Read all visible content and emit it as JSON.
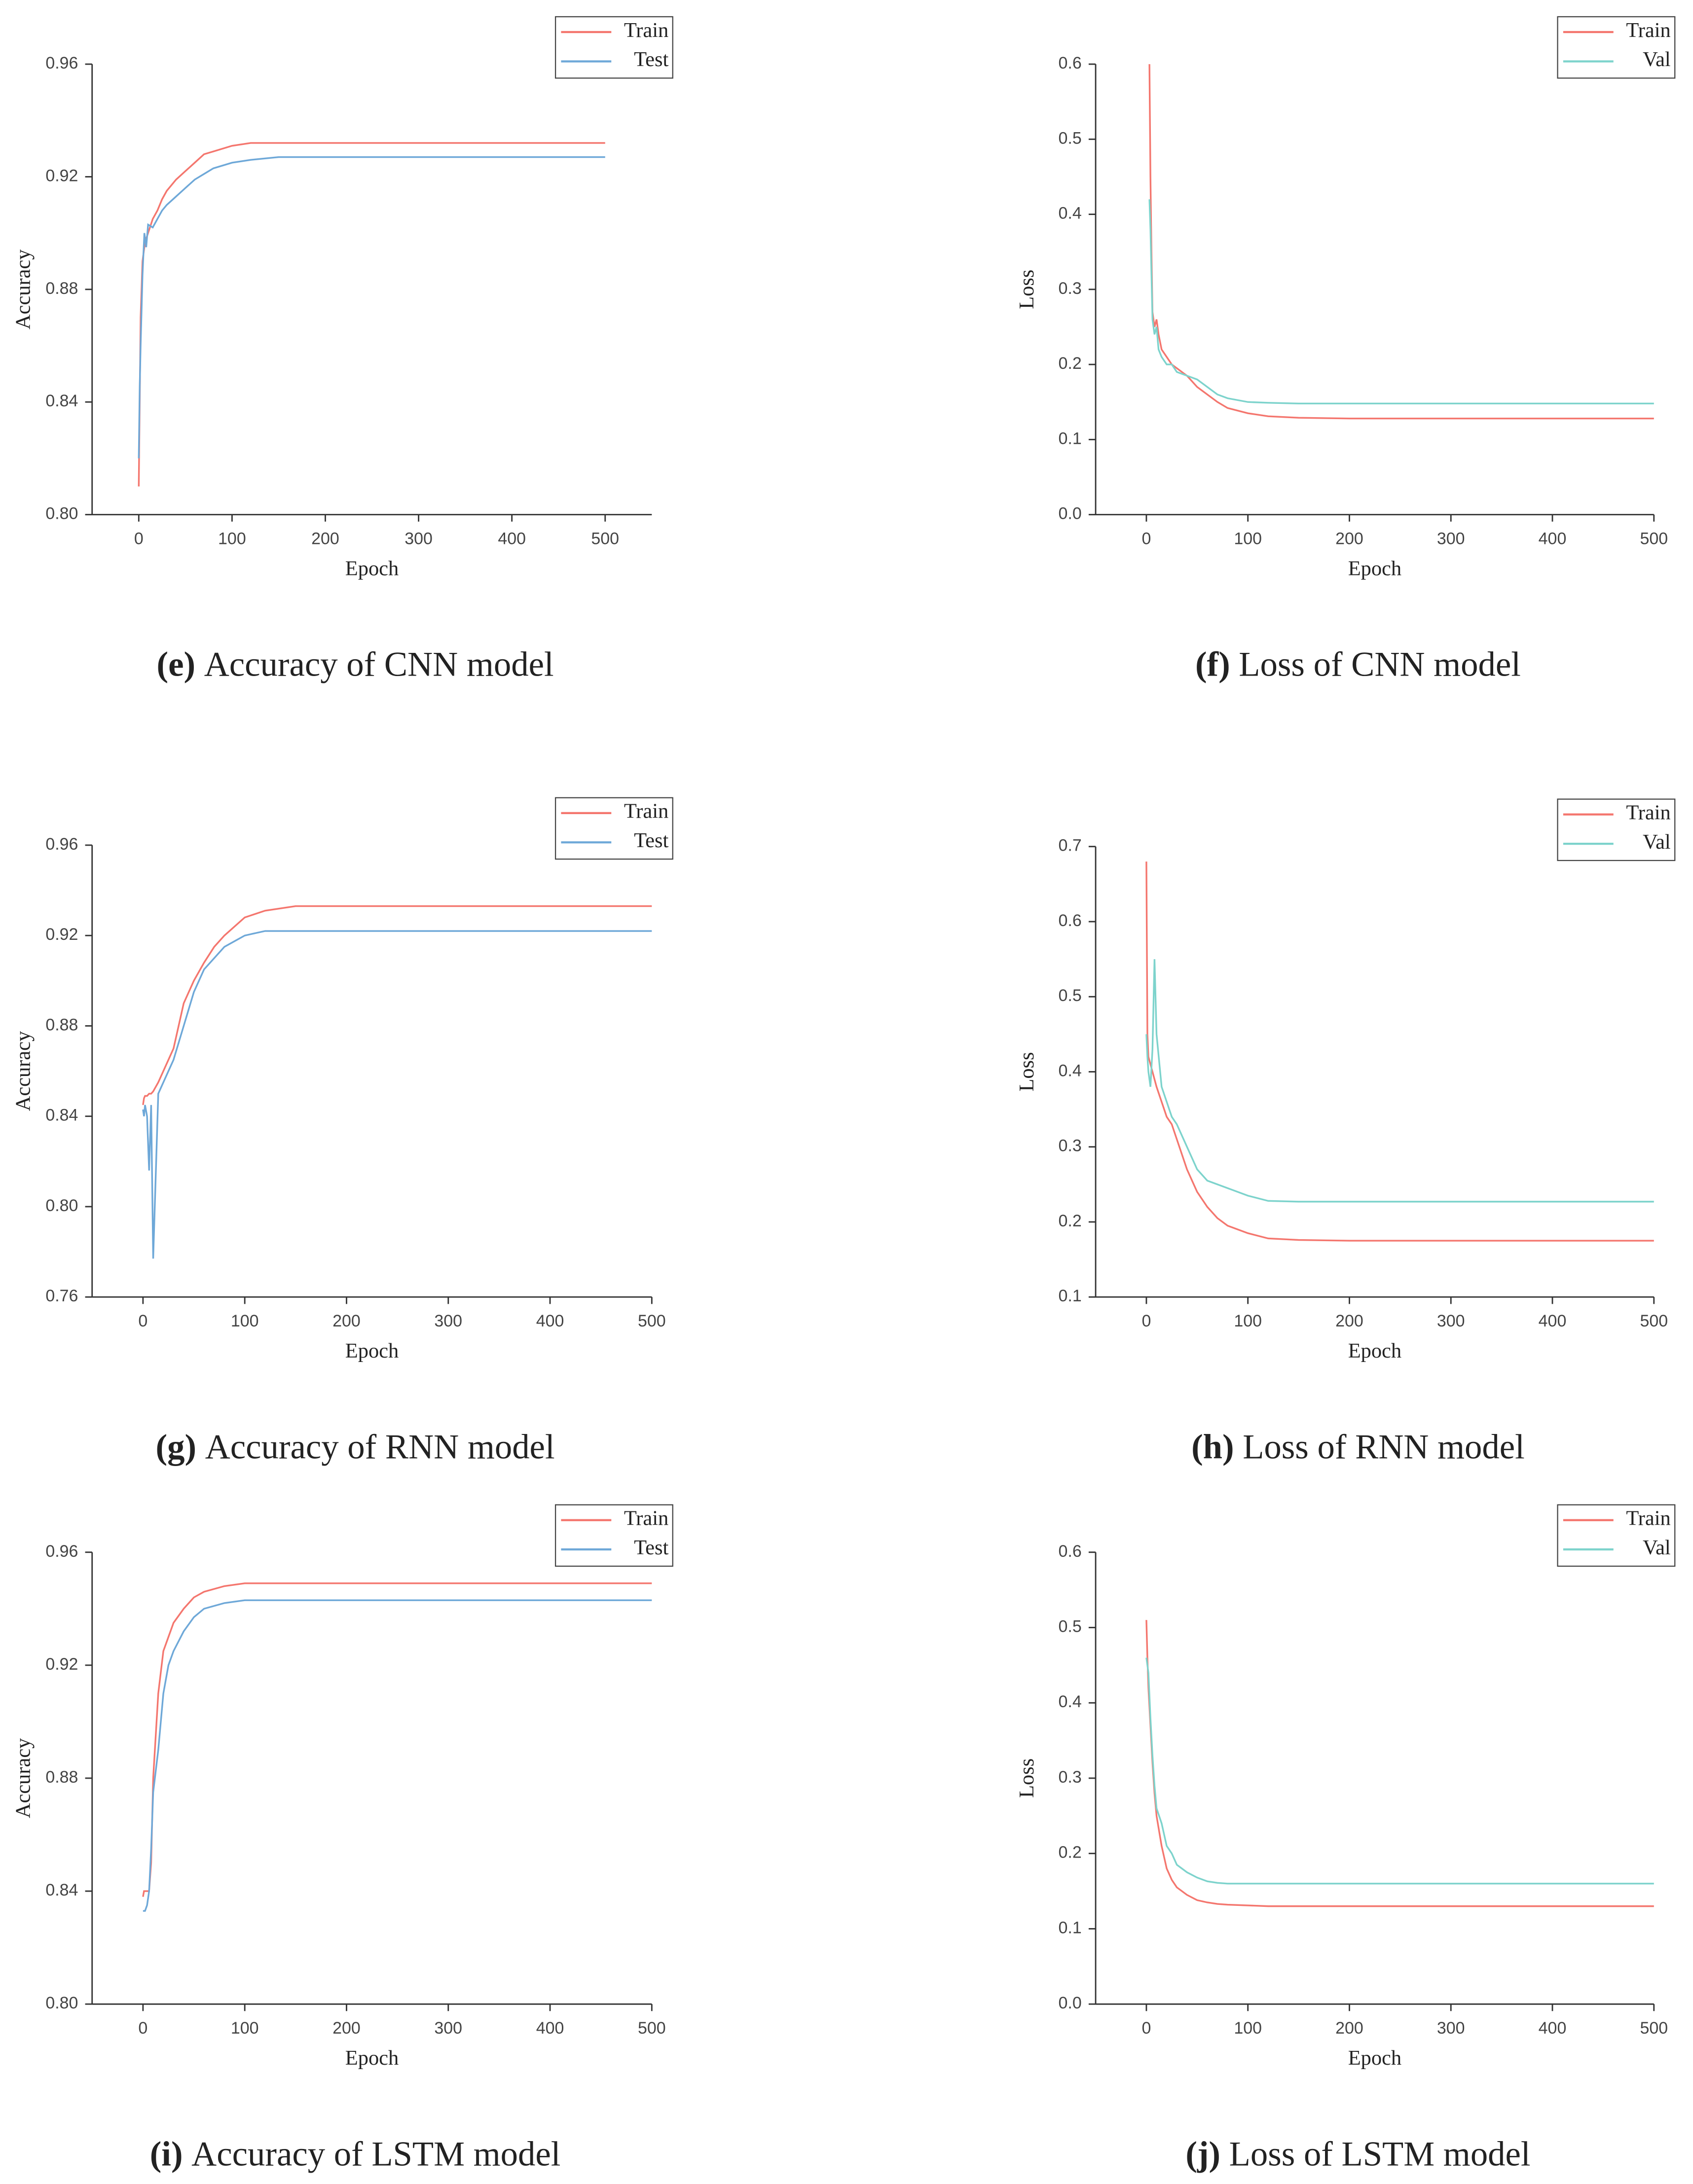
{
  "chart_data": [
    {
      "type": "line",
      "caption_label": "(e)",
      "caption": "Accuracy of CNN model",
      "xlabel": "Epoch",
      "ylabel": "Accuracy",
      "x": [
        0,
        1,
        2,
        4,
        6,
        8,
        10,
        15,
        20,
        25,
        30,
        40,
        50,
        60,
        70,
        80,
        100,
        120,
        150,
        200,
        300,
        400,
        500
      ],
      "xlim": [
        -50,
        550
      ],
      "xticks": [
        0,
        100,
        200,
        300,
        400,
        500
      ],
      "ylim": [
        0.8,
        0.96
      ],
      "yticks": [
        {
          "value": 0.8,
          "label": "0.80"
        },
        0.84,
        0.88,
        0.92,
        0.96
      ],
      "legend": "upper right",
      "series": [
        {
          "name": "Train",
          "color": "#f4766e",
          "values": [
            0.81,
            0.84,
            0.87,
            0.89,
            0.895,
            0.898,
            0.9,
            0.905,
            0.908,
            0.912,
            0.915,
            0.919,
            0.922,
            0.925,
            0.928,
            0.929,
            0.931,
            0.932,
            0.932,
            0.932,
            0.932,
            0.932,
            0.932
          ]
        },
        {
          "name": "Test",
          "color": "#6ea8d8",
          "values": [
            0.82,
            0.845,
            0.86,
            0.885,
            0.9,
            0.895,
            0.903,
            0.902,
            0.905,
            0.908,
            0.91,
            0.913,
            0.916,
            0.919,
            0.921,
            0.923,
            0.925,
            0.926,
            0.927,
            0.927,
            0.927,
            0.927,
            0.927
          ]
        }
      ]
    },
    {
      "type": "line",
      "caption_label": "(f)",
      "caption": "Loss of CNN model",
      "xlabel": "Epoch",
      "ylabel": "Loss",
      "x": [
        3,
        4,
        5,
        6,
        8,
        10,
        12,
        15,
        20,
        25,
        30,
        40,
        50,
        60,
        70,
        80,
        100,
        120,
        150,
        200,
        300,
        400,
        500
      ],
      "xlim": [
        -50,
        500
      ],
      "xticks": [
        0,
        100,
        200,
        300,
        400,
        500
      ],
      "ylim": [
        0,
        0.6
      ],
      "yticks": [
        {
          "value": 0,
          "label": "0.0"
        },
        0.1,
        0.2,
        0.3,
        0.4,
        0.5,
        0.6
      ],
      "legend": "upper right",
      "series": [
        {
          "name": "Train",
          "color": "#f4766e",
          "values": [
            0.6,
            0.45,
            0.35,
            0.27,
            0.25,
            0.26,
            0.24,
            0.22,
            0.21,
            0.2,
            0.195,
            0.185,
            0.17,
            0.16,
            0.15,
            0.142,
            0.135,
            0.131,
            0.129,
            0.128,
            0.128,
            0.128,
            0.128
          ]
        },
        {
          "name": "Val",
          "color": "#7dd3cc",
          "values": [
            0.42,
            0.38,
            0.32,
            0.26,
            0.24,
            0.25,
            0.22,
            0.21,
            0.2,
            0.2,
            0.19,
            0.185,
            0.18,
            0.17,
            0.16,
            0.155,
            0.15,
            0.149,
            0.148,
            0.148,
            0.148,
            0.148,
            0.148
          ]
        }
      ]
    },
    {
      "type": "line",
      "caption_label": "(g)",
      "caption": "Accuracy of RNN model",
      "xlabel": "Epoch",
      "ylabel": "Accuracy",
      "x": [
        0,
        1,
        2,
        4,
        6,
        8,
        10,
        15,
        20,
        25,
        30,
        40,
        50,
        60,
        70,
        80,
        100,
        120,
        150,
        200,
        300,
        400,
        500
      ],
      "xlim": [
        -50,
        500
      ],
      "xticks": [
        0,
        100,
        200,
        300,
        400,
        500
      ],
      "ylim": [
        0.76,
        0.96
      ],
      "yticks": [
        0.76,
        {
          "value": 0.8,
          "label": "0.80"
        },
        0.84,
        0.88,
        0.92,
        0.96
      ],
      "legend": "upper right",
      "series": [
        {
          "name": "Train",
          "color": "#f4766e",
          "values": [
            0.845,
            0.848,
            0.849,
            0.849,
            0.85,
            0.85,
            0.851,
            0.855,
            0.86,
            0.865,
            0.87,
            0.89,
            0.9,
            0.908,
            0.915,
            0.92,
            0.928,
            0.931,
            0.933,
            0.933,
            0.933,
            0.933,
            0.933
          ]
        },
        {
          "name": "Test",
          "color": "#6ea8d8",
          "values": [
            0.843,
            0.84,
            0.845,
            0.84,
            0.816,
            0.845,
            0.777,
            0.85,
            0.855,
            0.86,
            0.865,
            0.88,
            0.895,
            0.905,
            0.91,
            0.915,
            0.92,
            0.922,
            0.922,
            0.922,
            0.922,
            0.922,
            0.922
          ]
        }
      ]
    },
    {
      "type": "line",
      "caption_label": "(h)",
      "caption": "Loss of RNN model",
      "xlabel": "Epoch",
      "ylabel": "Loss",
      "x": [
        0,
        1,
        2,
        4,
        6,
        8,
        10,
        15,
        20,
        25,
        30,
        40,
        50,
        60,
        70,
        80,
        100,
        120,
        150,
        200,
        300,
        400,
        500
      ],
      "xlim": [
        -50,
        500
      ],
      "xticks": [
        0,
        100,
        200,
        300,
        400,
        500
      ],
      "ylim": [
        0.1,
        0.7
      ],
      "yticks": [
        0.1,
        0.2,
        0.3,
        0.4,
        0.5,
        0.6,
        0.7
      ],
      "legend": "upper right",
      "series": [
        {
          "name": "Train",
          "color": "#f4766e",
          "values": [
            0.68,
            0.45,
            0.42,
            0.41,
            0.4,
            0.39,
            0.38,
            0.36,
            0.34,
            0.33,
            0.31,
            0.27,
            0.24,
            0.22,
            0.205,
            0.195,
            0.185,
            0.178,
            0.176,
            0.175,
            0.175,
            0.175,
            0.175
          ]
        },
        {
          "name": "Val",
          "color": "#7dd3cc",
          "values": [
            0.45,
            0.42,
            0.4,
            0.38,
            0.43,
            0.55,
            0.45,
            0.38,
            0.36,
            0.34,
            0.33,
            0.3,
            0.27,
            0.255,
            0.25,
            0.245,
            0.235,
            0.228,
            0.227,
            0.227,
            0.227,
            0.227,
            0.227
          ]
        }
      ]
    },
    {
      "type": "line",
      "caption_label": "(i)",
      "caption": "Accuracy of LSTM model",
      "xlabel": "Epoch",
      "ylabel": "Accuracy",
      "x": [
        0,
        1,
        2,
        4,
        6,
        8,
        10,
        15,
        20,
        25,
        30,
        40,
        50,
        60,
        70,
        80,
        100,
        120,
        150,
        200,
        300,
        400,
        500
      ],
      "xlim": [
        -50,
        500
      ],
      "xticks": [
        0,
        100,
        200,
        300,
        400,
        500
      ],
      "ylim": [
        0.8,
        0.96
      ],
      "yticks": [
        {
          "value": 0.8,
          "label": "0.80"
        },
        0.84,
        0.88,
        0.92,
        0.96
      ],
      "legend": "upper right",
      "series": [
        {
          "name": "Train",
          "color": "#f4766e",
          "values": [
            0.838,
            0.84,
            0.84,
            0.84,
            0.84,
            0.85,
            0.88,
            0.91,
            0.925,
            0.93,
            0.935,
            0.94,
            0.944,
            0.946,
            0.947,
            0.948,
            0.949,
            0.949,
            0.949,
            0.949,
            0.949,
            0.949,
            0.949
          ]
        },
        {
          "name": "Test",
          "color": "#6ea8d8",
          "values": [
            0.833,
            0.833,
            0.833,
            0.835,
            0.84,
            0.855,
            0.875,
            0.89,
            0.91,
            0.92,
            0.925,
            0.932,
            0.937,
            0.94,
            0.941,
            0.942,
            0.943,
            0.943,
            0.943,
            0.943,
            0.943,
            0.943,
            0.943
          ]
        }
      ]
    },
    {
      "type": "line",
      "caption_label": "(j)",
      "caption": "Loss of LSTM model",
      "xlabel": "Epoch",
      "ylabel": "Loss",
      "x": [
        0,
        1,
        2,
        4,
        6,
        8,
        10,
        15,
        20,
        25,
        30,
        40,
        50,
        60,
        70,
        80,
        100,
        120,
        150,
        200,
        300,
        400,
        500
      ],
      "xlim": [
        -50,
        500
      ],
      "xticks": [
        0,
        100,
        200,
        300,
        400,
        500
      ],
      "ylim": [
        0,
        0.6
      ],
      "yticks": [
        {
          "value": 0,
          "label": "0.0"
        },
        0.1,
        0.2,
        0.3,
        0.4,
        0.5,
        0.6
      ],
      "legend": "upper right",
      "series": [
        {
          "name": "Train",
          "color": "#f4766e",
          "values": [
            0.51,
            0.46,
            0.42,
            0.37,
            0.32,
            0.28,
            0.25,
            0.21,
            0.18,
            0.165,
            0.155,
            0.145,
            0.138,
            0.135,
            0.133,
            0.132,
            0.131,
            0.13,
            0.13,
            0.13,
            0.13,
            0.13,
            0.13
          ]
        },
        {
          "name": "Val",
          "color": "#7dd3cc",
          "values": [
            0.46,
            0.45,
            0.44,
            0.38,
            0.33,
            0.29,
            0.26,
            0.24,
            0.21,
            0.2,
            0.185,
            0.175,
            0.168,
            0.163,
            0.161,
            0.16,
            0.16,
            0.16,
            0.16,
            0.16,
            0.16,
            0.16,
            0.16
          ]
        }
      ]
    }
  ]
}
